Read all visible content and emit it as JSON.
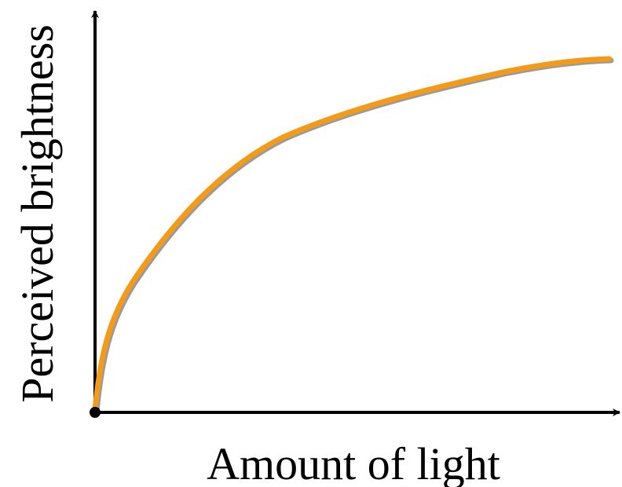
{
  "diagram": {
    "x_axis_label": "Amount of light",
    "y_axis_label": "Perceived brightness"
  }
}
